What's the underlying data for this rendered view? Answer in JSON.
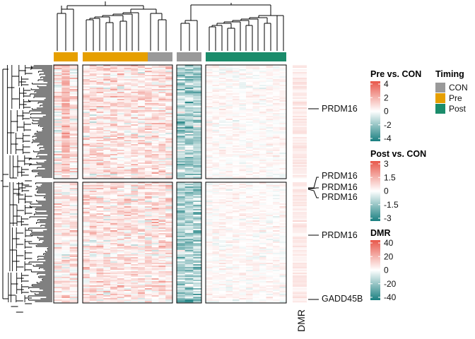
{
  "chart_data": {
    "type": "heatmap",
    "column_groups": [
      {
        "timing": "Pre",
        "columns": 3
      },
      {
        "timing": "Pre",
        "columns": 10
      },
      {
        "timing": "CON",
        "columns": 3
      },
      {
        "timing": "CON",
        "columns": 3
      },
      {
        "timing": "Post",
        "columns": 12
      }
    ],
    "row_slices": [
      {
        "slice": 1,
        "approx_rows": 160
      },
      {
        "slice": 2,
        "approx_rows": 170
      }
    ],
    "row_annotation_label": "DMR",
    "gene_labels": [
      {
        "label": "PRDM16",
        "slice": 1
      },
      {
        "label": "PRDM16",
        "slice": 2
      },
      {
        "label": "PRDM16",
        "slice": 2
      },
      {
        "label": "PRDM16",
        "slice": 2
      },
      {
        "label": "PRDM16",
        "slice": 2
      },
      {
        "label": "GADD45B",
        "slice": 2
      }
    ],
    "legends": {
      "pre_vs_con": {
        "title": "Pre vs. CON",
        "ticks": [
          "4",
          "2",
          "0",
          "-2",
          "-4"
        ],
        "range": [
          -4,
          4
        ]
      },
      "post_vs_con": {
        "title": "Post vs. CON",
        "ticks": [
          "3",
          "1.5",
          "0",
          "-1.5",
          "-3"
        ],
        "range": [
          -3,
          3
        ]
      },
      "dmr": {
        "title": "DMR",
        "ticks": [
          "40",
          "20",
          "0",
          "-20",
          "-40"
        ],
        "range": [
          -40,
          40
        ]
      }
    },
    "timing_legend": {
      "title": "Timing",
      "items": [
        {
          "label": "CON",
          "color": "#999999"
        },
        {
          "label": "Pre",
          "color": "#E69F00"
        },
        {
          "label": "Post",
          "color": "#1B8C6B"
        }
      ]
    },
    "colors": {
      "low": "#1A7F80",
      "mid": "#FFFFFF",
      "high": "#E8574A"
    }
  }
}
